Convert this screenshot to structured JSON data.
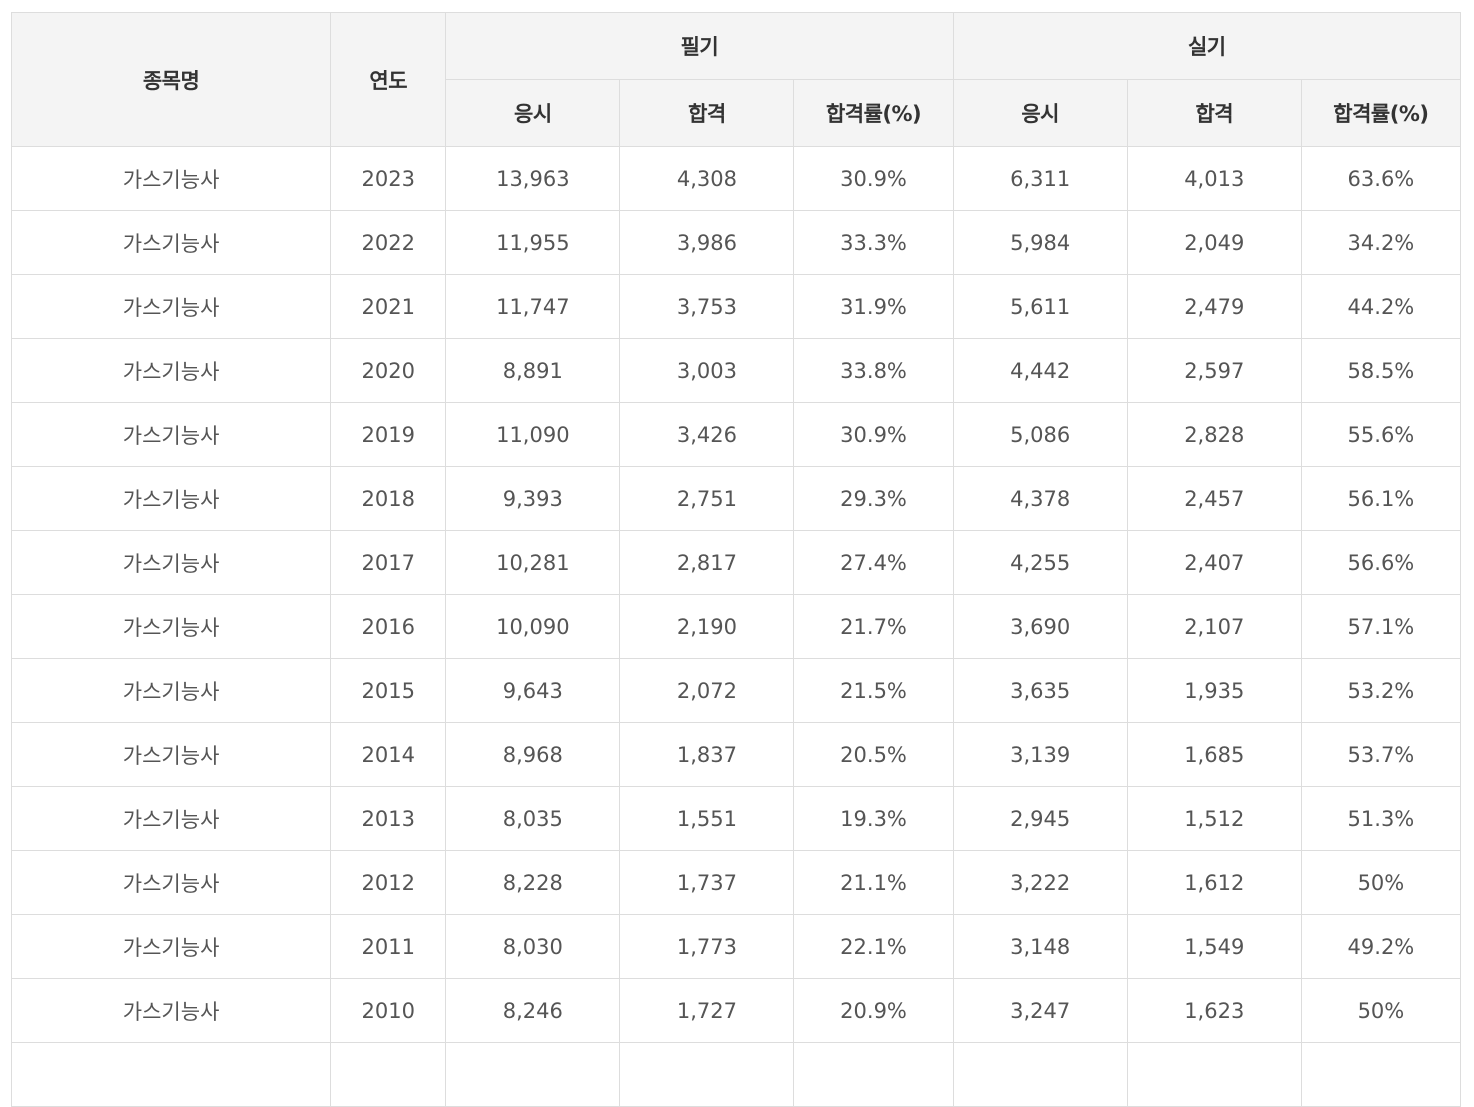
{
  "table": {
    "headers": {
      "name": "종목명",
      "year": "연도",
      "written": "필기",
      "practical": "실기",
      "apply": "응시",
      "pass": "합격",
      "rate": "합격률(%)"
    },
    "rows": [
      {
        "name": "가스기능사",
        "year": "2023",
        "w_apply": "13,963",
        "w_pass": "4,308",
        "w_rate": "30.9%",
        "p_apply": "6,311",
        "p_pass": "4,013",
        "p_rate": "63.6%"
      },
      {
        "name": "가스기능사",
        "year": "2022",
        "w_apply": "11,955",
        "w_pass": "3,986",
        "w_rate": "33.3%",
        "p_apply": "5,984",
        "p_pass": "2,049",
        "p_rate": "34.2%"
      },
      {
        "name": "가스기능사",
        "year": "2021",
        "w_apply": "11,747",
        "w_pass": "3,753",
        "w_rate": "31.9%",
        "p_apply": "5,611",
        "p_pass": "2,479",
        "p_rate": "44.2%"
      },
      {
        "name": "가스기능사",
        "year": "2020",
        "w_apply": "8,891",
        "w_pass": "3,003",
        "w_rate": "33.8%",
        "p_apply": "4,442",
        "p_pass": "2,597",
        "p_rate": "58.5%"
      },
      {
        "name": "가스기능사",
        "year": "2019",
        "w_apply": "11,090",
        "w_pass": "3,426",
        "w_rate": "30.9%",
        "p_apply": "5,086",
        "p_pass": "2,828",
        "p_rate": "55.6%"
      },
      {
        "name": "가스기능사",
        "year": "2018",
        "w_apply": "9,393",
        "w_pass": "2,751",
        "w_rate": "29.3%",
        "p_apply": "4,378",
        "p_pass": "2,457",
        "p_rate": "56.1%"
      },
      {
        "name": "가스기능사",
        "year": "2017",
        "w_apply": "10,281",
        "w_pass": "2,817",
        "w_rate": "27.4%",
        "p_apply": "4,255",
        "p_pass": "2,407",
        "p_rate": "56.6%"
      },
      {
        "name": "가스기능사",
        "year": "2016",
        "w_apply": "10,090",
        "w_pass": "2,190",
        "w_rate": "21.7%",
        "p_apply": "3,690",
        "p_pass": "2,107",
        "p_rate": "57.1%"
      },
      {
        "name": "가스기능사",
        "year": "2015",
        "w_apply": "9,643",
        "w_pass": "2,072",
        "w_rate": "21.5%",
        "p_apply": "3,635",
        "p_pass": "1,935",
        "p_rate": "53.2%"
      },
      {
        "name": "가스기능사",
        "year": "2014",
        "w_apply": "8,968",
        "w_pass": "1,837",
        "w_rate": "20.5%",
        "p_apply": "3,139",
        "p_pass": "1,685",
        "p_rate": "53.7%"
      },
      {
        "name": "가스기능사",
        "year": "2013",
        "w_apply": "8,035",
        "w_pass": "1,551",
        "w_rate": "19.3%",
        "p_apply": "2,945",
        "p_pass": "1,512",
        "p_rate": "51.3%"
      },
      {
        "name": "가스기능사",
        "year": "2012",
        "w_apply": "8,228",
        "w_pass": "1,737",
        "w_rate": "21.1%",
        "p_apply": "3,222",
        "p_pass": "1,612",
        "p_rate": "50%"
      },
      {
        "name": "가스기능사",
        "year": "2011",
        "w_apply": "8,030",
        "w_pass": "1,773",
        "w_rate": "22.1%",
        "p_apply": "3,148",
        "p_pass": "1,549",
        "p_rate": "49.2%"
      },
      {
        "name": "가스기능사",
        "year": "2010",
        "w_apply": "8,246",
        "w_pass": "1,727",
        "w_rate": "20.9%",
        "p_apply": "3,247",
        "p_pass": "1,623",
        "p_rate": "50%"
      },
      {
        "name": "",
        "year": "",
        "w_apply": "",
        "w_pass": "",
        "w_rate": "",
        "p_apply": "",
        "p_pass": "",
        "p_rate": ""
      }
    ]
  }
}
